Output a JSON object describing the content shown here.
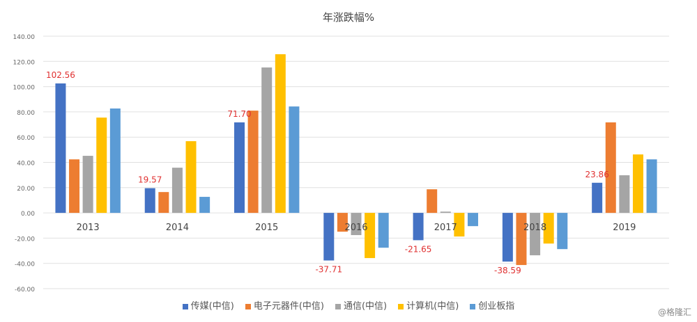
{
  "chart_data": {
    "type": "bar",
    "title": "年涨跌幅%",
    "categories": [
      "2013",
      "2014",
      "2015",
      "2016",
      "2017",
      "2018",
      "2019"
    ],
    "ylim": [
      -60,
      140
    ],
    "yticks": [
      "-60.00",
      "-40.00",
      "-20.00",
      "0.00",
      "20.00",
      "40.00",
      "60.00",
      "80.00",
      "100.00",
      "120.00",
      "140.00"
    ],
    "grid": true,
    "legend": "bottom",
    "series": [
      {
        "name": "传媒(中信)",
        "color": "#4472c4",
        "values": [
          102.56,
          19.57,
          71.7,
          -37.71,
          -21.65,
          -38.59,
          23.86
        ]
      },
      {
        "name": "电子元器件(中信)",
        "color": "#ed7d31",
        "values": [
          42.4,
          16.5,
          81.0,
          -14.9,
          18.7,
          -41.3,
          71.7
        ]
      },
      {
        "name": "通信(中信)",
        "color": "#a5a5a5",
        "values": [
          45.2,
          35.8,
          115.2,
          -17.6,
          1.0,
          -33.6,
          29.8
        ]
      },
      {
        "name": "计算机(中信)",
        "color": "#ffc000",
        "values": [
          75.5,
          56.8,
          125.7,
          -35.8,
          -18.7,
          -24.3,
          46.3
        ]
      },
      {
        "name": "创业板指",
        "color": "#5b9bd5",
        "values": [
          82.7,
          12.7,
          84.3,
          -27.6,
          -10.5,
          -28.7,
          42.4
        ]
      }
    ],
    "data_labels": {
      "series": 0,
      "labels": [
        "102.56",
        "19.57",
        "71.70",
        "-37.71",
        "-21.65",
        "-38.59",
        "23.86"
      ],
      "color": "#e03030"
    }
  },
  "watermark": "@格隆汇"
}
